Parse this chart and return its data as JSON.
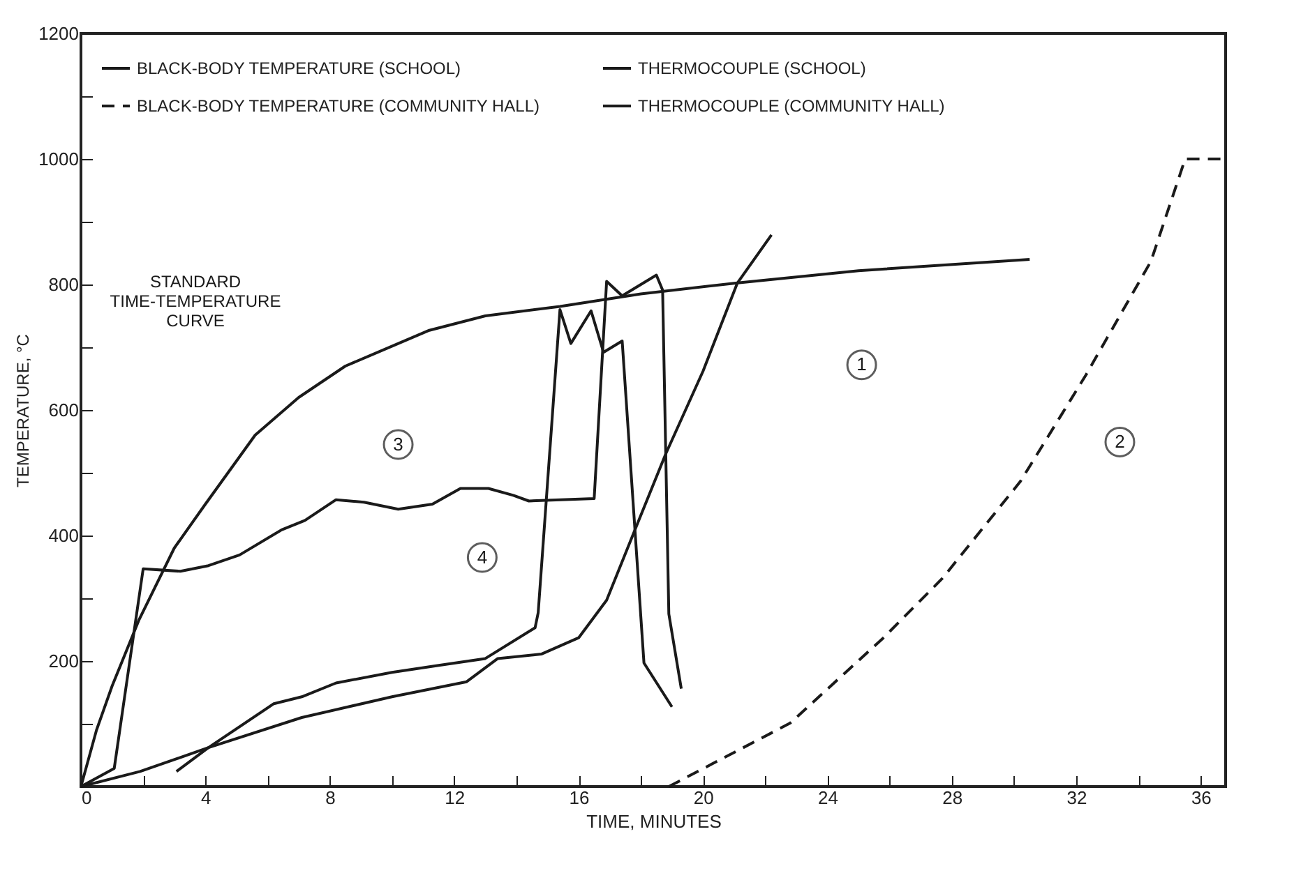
{
  "chart_data": {
    "type": "line",
    "xlabel": "TIME, MINUTES",
    "ylabel": "TEMPERATURE, °C",
    "xlim": [
      0,
      36.8
    ],
    "ylim": [
      0,
      1200
    ],
    "xticks": [
      0,
      {
        "value": 2,
        "label": null
      },
      4,
      {
        "value": 6,
        "label": null
      },
      8,
      {
        "value": 10,
        "label": null
      },
      12,
      {
        "value": 14,
        "label": null
      },
      16,
      {
        "value": 18,
        "label": null
      },
      20,
      {
        "value": 22,
        "label": null
      },
      24,
      {
        "value": 26,
        "label": null
      },
      28,
      {
        "value": 30,
        "label": null
      },
      32,
      {
        "value": 34,
        "label": null
      },
      36
    ],
    "yticks": [
      {
        "value": 0,
        "label": null
      },
      {
        "value": 100,
        "label": null
      },
      200,
      {
        "value": 300,
        "label": null
      },
      400,
      {
        "value": 500,
        "label": null
      },
      600,
      {
        "value": 700,
        "label": null
      },
      800,
      {
        "value": 900,
        "label": null
      },
      1000,
      {
        "value": 1100,
        "label": null
      },
      1200
    ],
    "grid": false,
    "legend": "top left",
    "series": [
      {
        "name": "BLACK-BODY TEMPERATURE (SCHOOL)",
        "color": "#1a1a1a",
        "line_style": "solid",
        "x": [
          0,
          1.9,
          4.1,
          7.1,
          10.0,
          12.4,
          13.4,
          14.8,
          16.0,
          16.9,
          17.9,
          18.8,
          20.0,
          21.1,
          22.2
        ],
        "values": [
          0,
          24,
          62,
          110,
          143,
          167,
          204,
          211,
          237,
          297,
          420,
          530,
          662,
          802,
          879
        ]
      },
      {
        "name": "BLACK-BODY TEMPERATURE (COMMUNITY HALL)",
        "color": "#1a1a1a",
        "line_style": "dashed",
        "x": [
          18.9,
          22.8,
          25.8,
          27.7,
          30.2,
          32.3,
          34.4,
          35.5,
          36.8
        ],
        "values": [
          0,
          101,
          237,
          332,
          486,
          655,
          837,
          1000,
          1000
        ]
      },
      {
        "name": "THERMOCOUPLE (SCHOOL)",
        "color": "#1a1a1a",
        "line_style": "solid",
        "x": [
          0,
          1.07,
          2.0,
          3.2,
          4.1,
          5.1,
          6.45,
          7.2,
          8.2,
          9.1,
          10.2,
          11.3,
          12.2,
          13.1,
          13.9,
          14.4,
          16.5,
          16.9,
          17.4,
          18.5,
          18.7,
          18.9,
          19.3
        ],
        "values": [
          0,
          29,
          347,
          343,
          352,
          369,
          409,
          424,
          457,
          453,
          442,
          450,
          475,
          475,
          464,
          455,
          459,
          805,
          782,
          815,
          791,
          275,
          156
        ]
      },
      {
        "name": "THERMOCOUPLE (COMMUNITY HALL)",
        "color": "#1a1a1a",
        "line_style": "solid",
        "x": [
          3.07,
          4.1,
          6.2,
          7.1,
          8.2,
          10.0,
          11.5,
          13.0,
          14.6,
          14.7,
          15.4,
          15.75,
          16.4,
          16.8,
          17.4,
          18.1,
          19.0
        ],
        "values": [
          24,
          62,
          132,
          143,
          165,
          182,
          193,
          204,
          253,
          277,
          760,
          706,
          758,
          692,
          710,
          197,
          127
        ]
      },
      {
        "color": "#1a1a1a",
        "line_style": "solid",
        "x": [
          0,
          0.5,
          1,
          1.87,
          3,
          4,
          5.6,
          7,
          8.5,
          11.2,
          13,
          15.4,
          18,
          21,
          25,
          30.5
        ],
        "values": [
          0,
          90,
          160,
          266,
          380,
          450,
          560,
          620,
          670,
          727,
          750,
          765,
          785,
          802,
          822,
          840
        ]
      }
    ],
    "annotations": [
      "STANDARD TIME-TEMPERATURE CURVE",
      {
        "text": "1",
        "x": 25.1,
        "y": 672
      },
      {
        "text": "2",
        "x": 33.4,
        "y": 549
      },
      {
        "text": "3",
        "x": 10.2,
        "y": 545
      },
      {
        "text": "4",
        "x": 12.9,
        "y": 365
      }
    ]
  }
}
